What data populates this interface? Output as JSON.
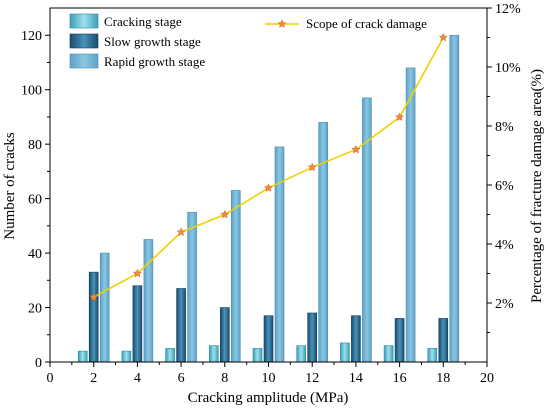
{
  "chart_data": {
    "type": "bar",
    "x": [
      2,
      4,
      6,
      8,
      10,
      12,
      14,
      16,
      18
    ],
    "xlabel": "Cracking amplitude (MPa)",
    "ylabel": "Number of cracks",
    "y2label": "Percentage of fracture damage area(%)",
    "xlim": [
      0,
      20
    ],
    "ylim": [
      0,
      130
    ],
    "y2lim": [
      0,
      12
    ],
    "xticks": [
      "0",
      "2",
      "4",
      "6",
      "8",
      "10",
      "12",
      "14",
      "16",
      "18",
      "20"
    ],
    "yticks": [
      "0",
      "20",
      "40",
      "60",
      "80",
      "100",
      "120"
    ],
    "y2ticks": [
      "2%",
      "4%",
      "6%",
      "8%",
      "10%",
      "12%"
    ],
    "grid": false,
    "legend_position": "top",
    "series": [
      {
        "name": "Cracking stage",
        "axis": "left",
        "color": "#5bbfd2",
        "values": [
          4,
          4,
          5,
          6,
          5,
          6,
          7,
          6,
          5
        ]
      },
      {
        "name": "Slow growth stage",
        "axis": "left",
        "color": "#2a6f94",
        "values": [
          33,
          28,
          27,
          20,
          17,
          18,
          17,
          16,
          16
        ]
      },
      {
        "name": "Rapid growth stage",
        "axis": "left",
        "color": "#6fb0d1",
        "values": [
          40,
          45,
          55,
          63,
          79,
          88,
          97,
          108,
          120
        ]
      },
      {
        "name": "Scope of crack damage",
        "axis": "right",
        "type": "line",
        "color": "#f0d000",
        "marker_color": "#f08a3c",
        "values": [
          2.2,
          3.0,
          4.4,
          5.0,
          5.9,
          6.6,
          7.2,
          8.3,
          11.0
        ]
      }
    ]
  }
}
